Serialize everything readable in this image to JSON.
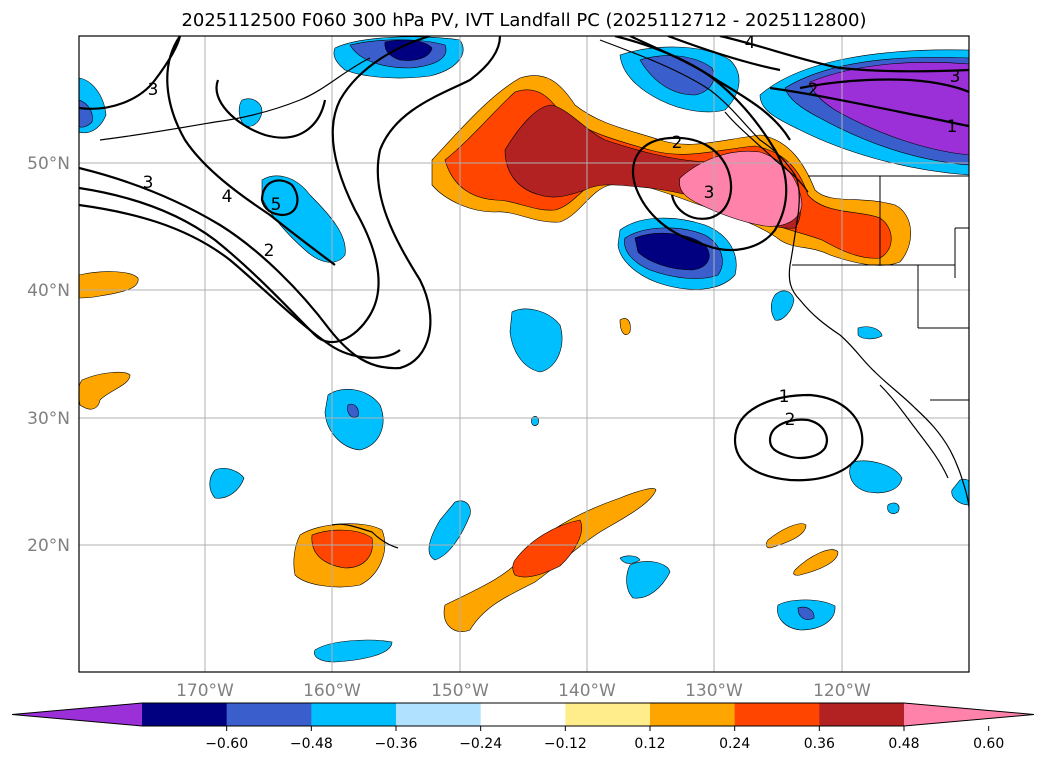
{
  "title": "2025112500 F060 300 hPa PV, IVT Landfall PC (2025112712 - 2025112800)",
  "lat_labels": [
    "50°N",
    "40°N",
    "30°N",
    "20°N"
  ],
  "lon_labels": [
    "170°W",
    "160°W",
    "150°W",
    "140°W",
    "130°W",
    "120°W"
  ],
  "colorbar": {
    "ticks": [
      "−0.60",
      "−0.48",
      "−0.36",
      "−0.24",
      "−0.12",
      "0.12",
      "0.24",
      "0.36",
      "0.48",
      "0.60"
    ],
    "colors": [
      "#9b30d9",
      "#000080",
      "#3a5fcd",
      "#00bfff",
      "#b0e2ff",
      "#ffffff",
      "#ffec8b",
      "#ffa500",
      "#ff4500",
      "#b22222",
      "#ff82ab"
    ],
    "extend": "both"
  },
  "contour_labels": [
    "3",
    "4",
    "5",
    "2",
    "3",
    "2",
    "3",
    "4",
    "2",
    "1",
    "3",
    "1",
    "2"
  ],
  "map": {
    "lat_range": [
      10,
      60
    ],
    "lon_range": [
      -180,
      -110
    ],
    "gridlines": true
  }
}
